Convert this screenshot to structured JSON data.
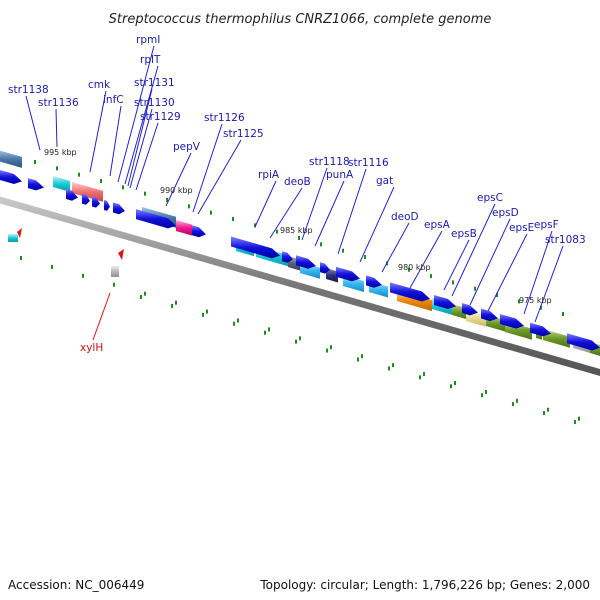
{
  "title": "Streptococcus thermophilus CNRZ1066, complete genome",
  "footer": {
    "accession": "Accession: NC_006449",
    "stats": "Topology: circular; Length: 1,796,226 bp; Genes: 2,000"
  },
  "kbp_markers": [
    "995 kbp",
    "990 kbp",
    "985 kbp",
    "980 kbp",
    "975 kbp"
  ],
  "gene_labels": [
    "str1138",
    "str1136",
    "cmk",
    "infC",
    "rpmI",
    "rplT",
    "str1131",
    "str1130",
    "str1129",
    "pepV",
    "str1126",
    "str1125",
    "rpiA",
    "deoB",
    "str1118",
    "punA",
    "str1116",
    "gat",
    "deoD",
    "epsA",
    "epsB",
    "epsC",
    "epsD",
    "epsE",
    "epsF",
    "str1083"
  ],
  "red_label": "xylH",
  "colors": {
    "gene_arrow": "#1111dd",
    "label_line": "#2222cc",
    "backbone": "#777777",
    "tick": "#228822",
    "red": "#dd1111"
  }
}
